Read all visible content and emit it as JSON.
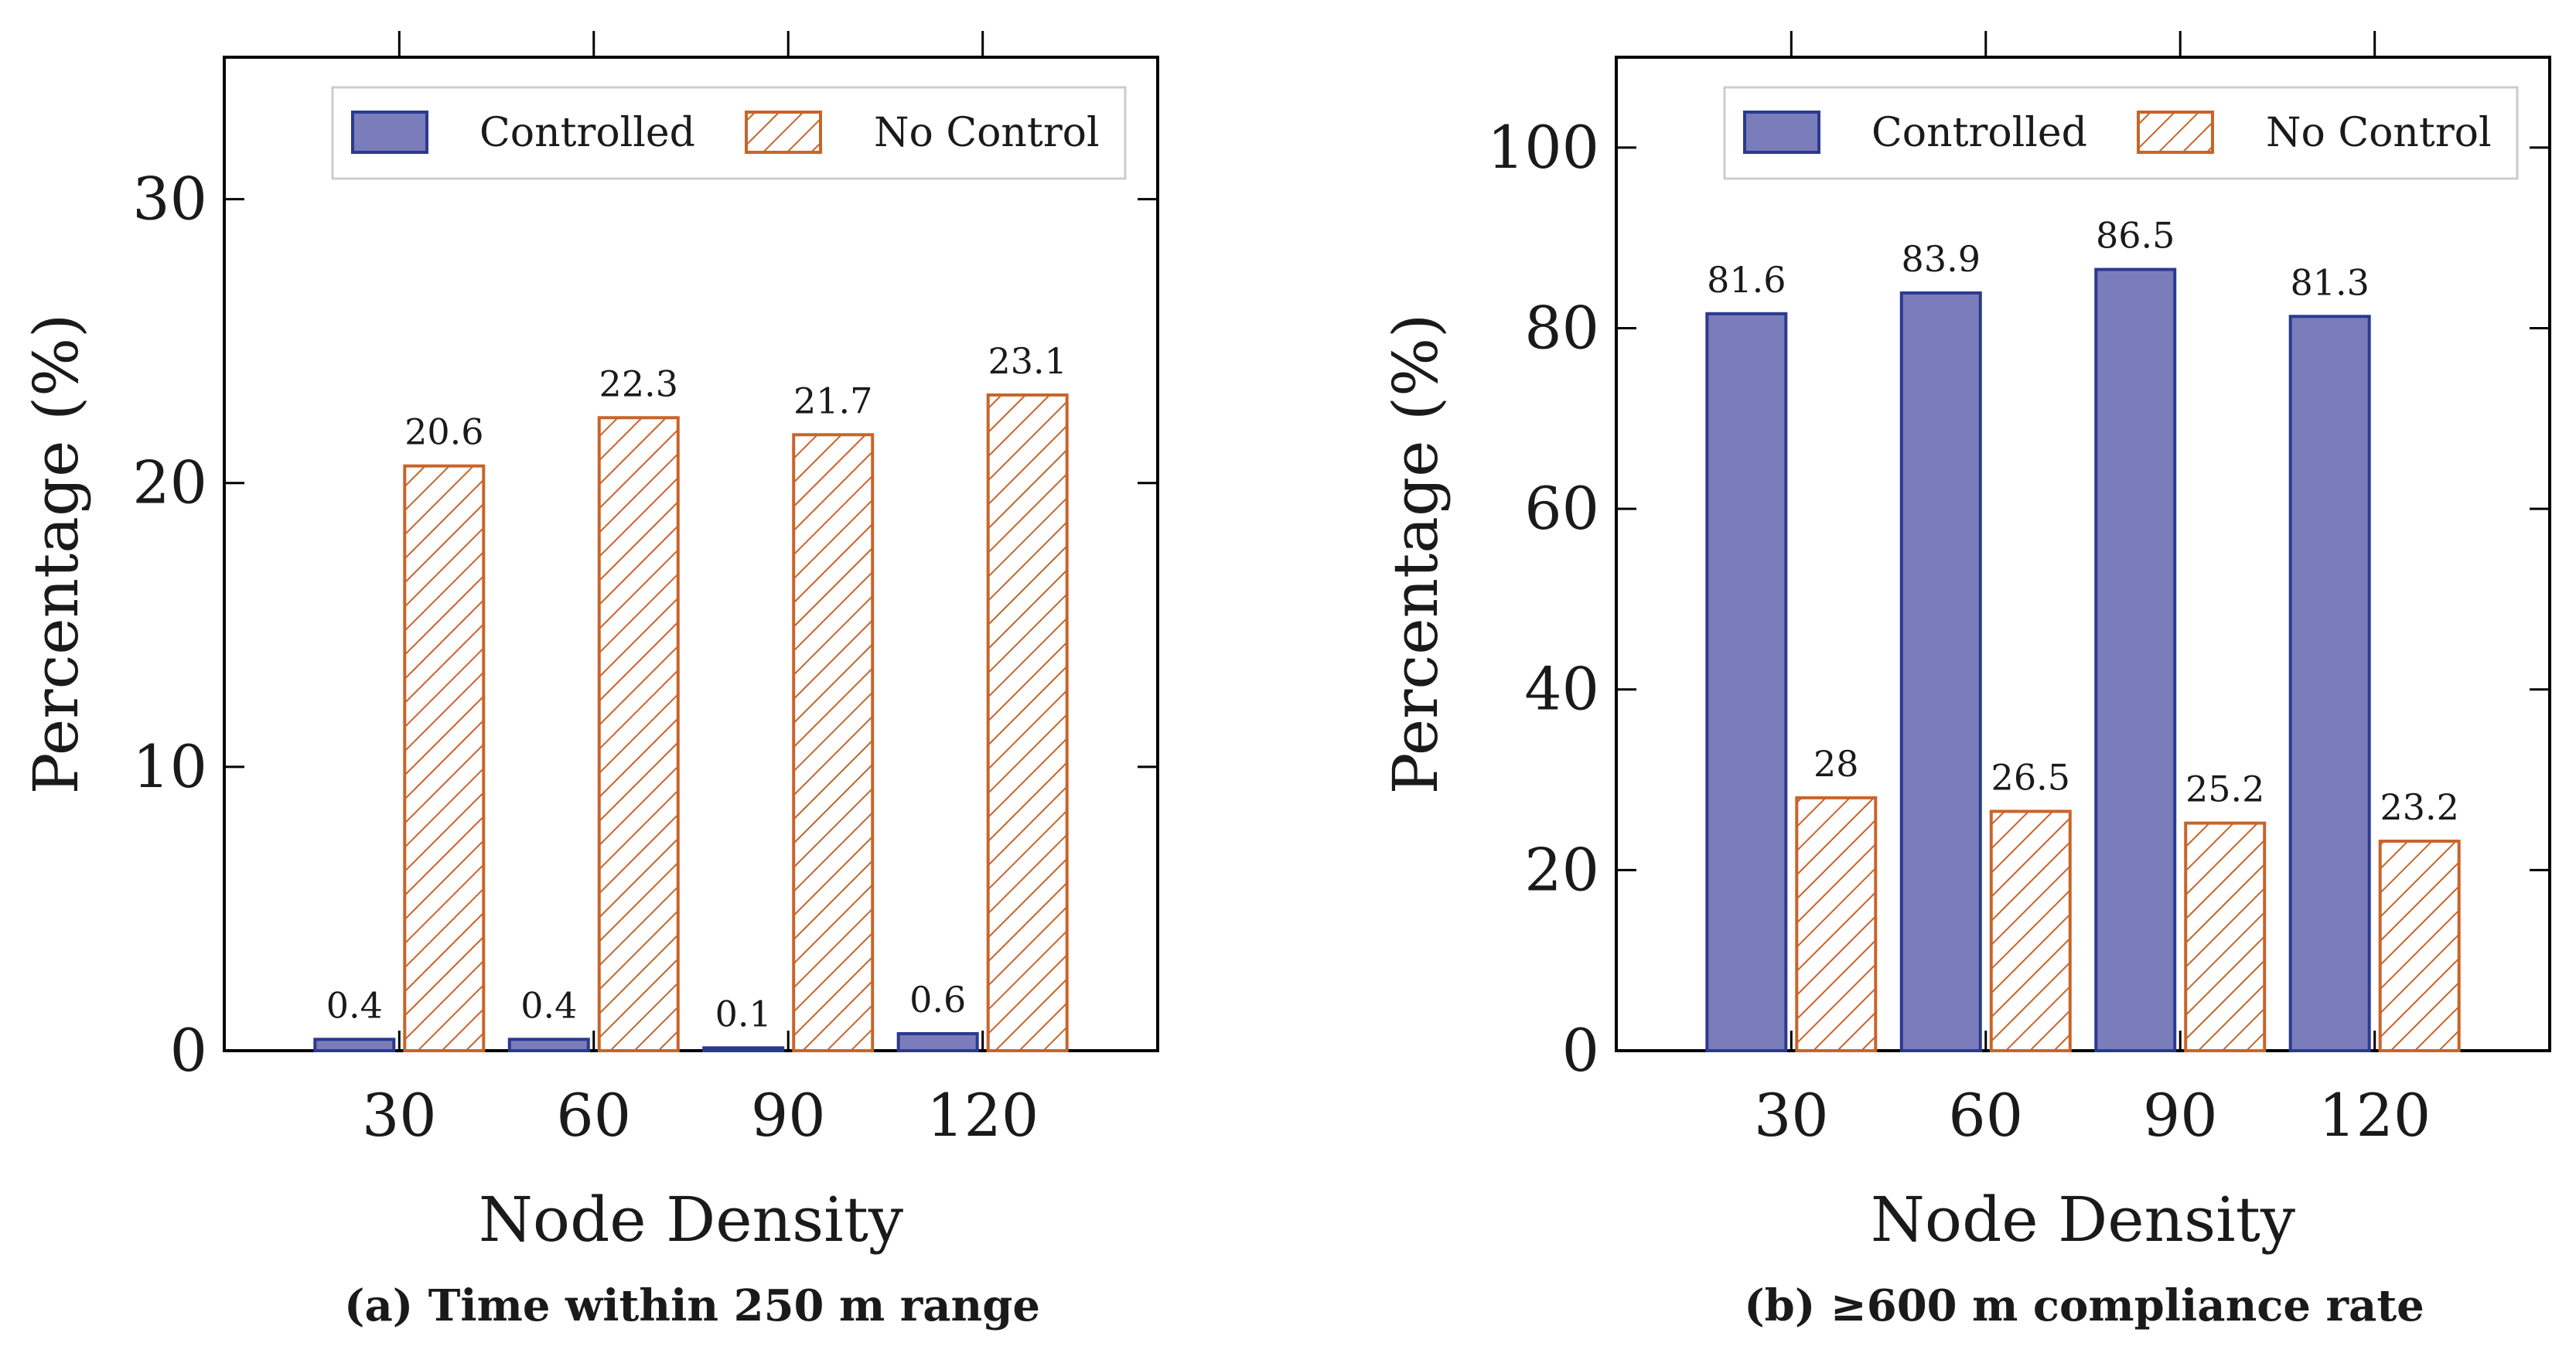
{
  "colors": {
    "controlled_fill": "#7a7db9",
    "controlled_stroke": "#2b3990",
    "nocontrol_stroke": "#c8642a",
    "axis": "#000000"
  },
  "chart_data": [
    {
      "type": "bar",
      "caption": "(a) Time within 250 m range",
      "xlabel": "Node Density",
      "ylabel": "Percentage (%)",
      "categories": [
        "30",
        "60",
        "90",
        "120"
      ],
      "ylim": [
        0,
        35
      ],
      "yticks": [
        0,
        10,
        20,
        30
      ],
      "grid": false,
      "legend_position": "top-right",
      "series": [
        {
          "name": "Controlled",
          "style": "solid",
          "values": [
            0.4,
            0.4,
            0.1,
            0.6
          ]
        },
        {
          "name": "No Control",
          "style": "hatched",
          "values": [
            20.6,
            22.3,
            21.7,
            23.1
          ]
        }
      ]
    },
    {
      "type": "bar",
      "caption": "(b) ≥600 m compliance rate",
      "xlabel": "Node Density",
      "ylabel": "Percentage (%)",
      "categories": [
        "30",
        "60",
        "90",
        "120"
      ],
      "ylim": [
        0,
        110
      ],
      "yticks": [
        0,
        20,
        40,
        60,
        80,
        100
      ],
      "grid": false,
      "legend_position": "top-right",
      "series": [
        {
          "name": "Controlled",
          "style": "solid",
          "values": [
            81.6,
            83.9,
            86.5,
            81.3
          ]
        },
        {
          "name": "No Control",
          "style": "hatched",
          "values": [
            28,
            26.5,
            25.2,
            23.2
          ]
        }
      ]
    }
  ]
}
